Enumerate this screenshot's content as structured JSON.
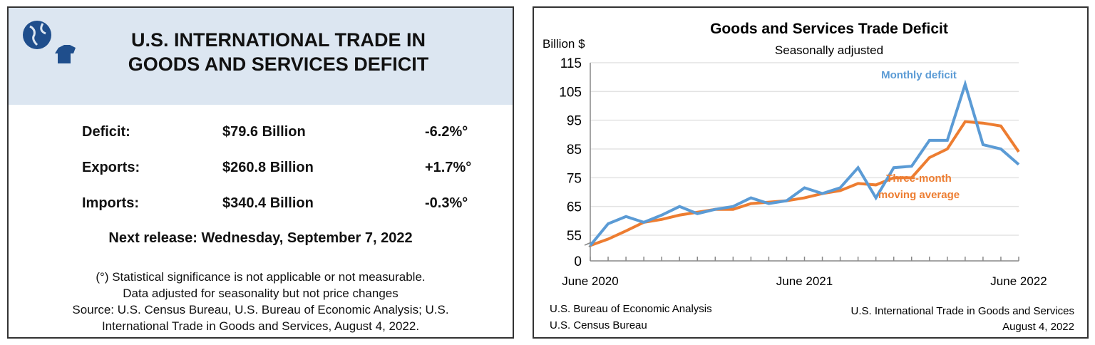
{
  "summary": {
    "title_line1": "U.S. INTERNATIONAL TRADE IN",
    "title_line2": "GOODS AND SERVICES DEFICIT",
    "rows": [
      {
        "label": "Deficit:",
        "value": "$79.6 Billion",
        "change": "-6.2%°"
      },
      {
        "label": "Exports:",
        "value": "$260.8 Billion",
        "change": "+1.7%°"
      },
      {
        "label": "Imports:",
        "value": "$340.4 Billion",
        "change": "-0.3%°"
      }
    ],
    "next_release": "Next release: Wednesday, September 7, 2022",
    "notes": [
      "(°) Statistical significance is not applicable or not measurable.",
      "Data adjusted for seasonality but not price changes",
      "Source: U.S. Census Bureau, U.S. Bureau of Economic Analysis; U.S.",
      "International Trade in Goods and Services, August  4, 2022."
    ],
    "icons": [
      "globe-icon",
      "tshirt-icon"
    ],
    "header_color": "#dce6f1",
    "icon_color": "#1f4e8c"
  },
  "chart_data": {
    "type": "line",
    "title": "Goods and Services Trade Deficit",
    "subtitle": "Seasonally adjusted",
    "ylabel": "Billion $",
    "yticks": [
      0,
      55,
      65,
      75,
      85,
      95,
      105,
      115
    ],
    "ylim": [
      45,
      115
    ],
    "axis_break": true,
    "xtick_labels": [
      "June 2020",
      "June 2021",
      "June 2022"
    ],
    "x": [
      "2020-06",
      "2020-07",
      "2020-08",
      "2020-09",
      "2020-10",
      "2020-11",
      "2020-12",
      "2021-01",
      "2021-02",
      "2021-03",
      "2021-04",
      "2021-05",
      "2021-06",
      "2021-07",
      "2021-08",
      "2021-09",
      "2021-10",
      "2021-11",
      "2021-12",
      "2022-01",
      "2022-02",
      "2022-03",
      "2022-04",
      "2022-05",
      "2022-06"
    ],
    "series": [
      {
        "name": "Monthly deficit",
        "color": "#5b9bd5",
        "values": [
          51,
          59,
          61.5,
          59.5,
          62,
          65,
          62.5,
          64,
          65,
          68,
          66,
          67,
          71.5,
          69.5,
          71.5,
          78.5,
          68,
          78.5,
          79,
          88,
          88,
          107.5,
          86.5,
          85,
          79.6
        ]
      },
      {
        "name": "Three-month moving average",
        "name_lines": [
          "Three-month",
          "moving average"
        ],
        "color": "#ed7d31",
        "values": [
          51,
          53.5,
          56.5,
          59.5,
          60.5,
          62,
          63,
          64,
          64,
          66,
          66.5,
          67,
          68,
          69.5,
          70.5,
          73,
          72.5,
          75,
          75,
          82,
          85,
          94.5,
          94,
          93,
          84
        ]
      }
    ],
    "grid": true,
    "footer_left": [
      "U.S. Bureau of Economic Analysis",
      "U.S. Census Bureau"
    ],
    "footer_right": [
      "U.S. International Trade in Goods and Services",
      "August 4, 2022"
    ]
  }
}
